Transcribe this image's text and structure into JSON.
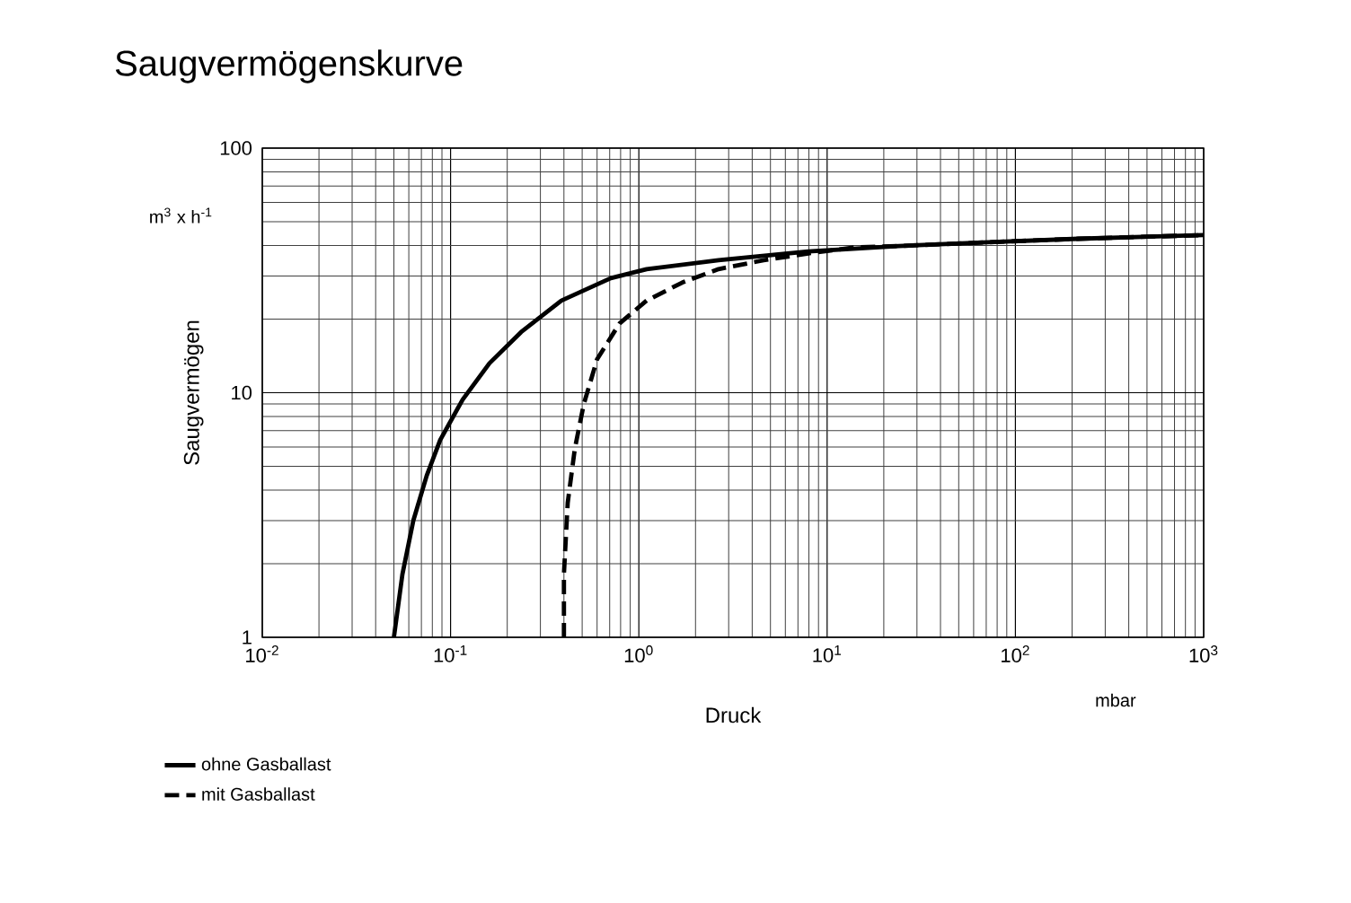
{
  "chart_data": {
    "type": "line",
    "title": "Saugvermögenskurve",
    "xlabel": "Druck",
    "ylabel": "Saugvermögen",
    "annotations": [
      "m$^{3}$ x h$^{-1}$",
      "mbar"
    ],
    "log": "xy",
    "grid": true,
    "legend": "bottom left",
    "xlim": [
      0.01,
      1000
    ],
    "ylim": [
      1,
      100
    ],
    "xticks": [
      {
        "value": 0.01,
        "label": "10$^{-2}$"
      },
      {
        "value": 0.1,
        "label": "10$^{-1}$"
      },
      {
        "value": 1,
        "label": "10$^{0}$"
      },
      {
        "value": 10,
        "label": "10$^{1}$"
      },
      {
        "value": 100,
        "label": "10$^{2}$"
      },
      {
        "value": 1000,
        "label": "10$^{3}$"
      }
    ],
    "yticks": [
      1,
      10,
      100
    ],
    "series": [
      {
        "name": "ohne Gasballast",
        "color": "#000000",
        "line_style": "solid",
        "x": [
          0.05,
          0.0555,
          0.0634,
          0.0747,
          0.0881,
          0.116,
          0.161,
          0.237,
          0.388,
          0.71,
          1.1,
          2.65,
          7.94,
          23.9,
          71.6,
          215,
          1000
        ],
        "values": [
          1,
          1.81,
          3.0,
          4.58,
          6.41,
          9.38,
          13.2,
          17.7,
          23.8,
          29.4,
          32,
          34.8,
          37.8,
          39.8,
          41.2,
          42.6,
          44.1
        ]
      },
      {
        "name": "mit Gasballast",
        "color": "#000000",
        "line_style": "dashed",
        "x": [
          0.4,
          0.4,
          0.419,
          0.457,
          0.51,
          0.6,
          0.79,
          1.1,
          1.7,
          2.65,
          4.6,
          7.94,
          13.7,
          23.9,
          71.6,
          215,
          1000
        ],
        "values": [
          1,
          1.81,
          3.55,
          5.9,
          8.98,
          13.7,
          19.2,
          23.8,
          28.2,
          32,
          34.8,
          37.1,
          39.2,
          39.8,
          41.2,
          42.6,
          44.1
        ]
      }
    ]
  }
}
